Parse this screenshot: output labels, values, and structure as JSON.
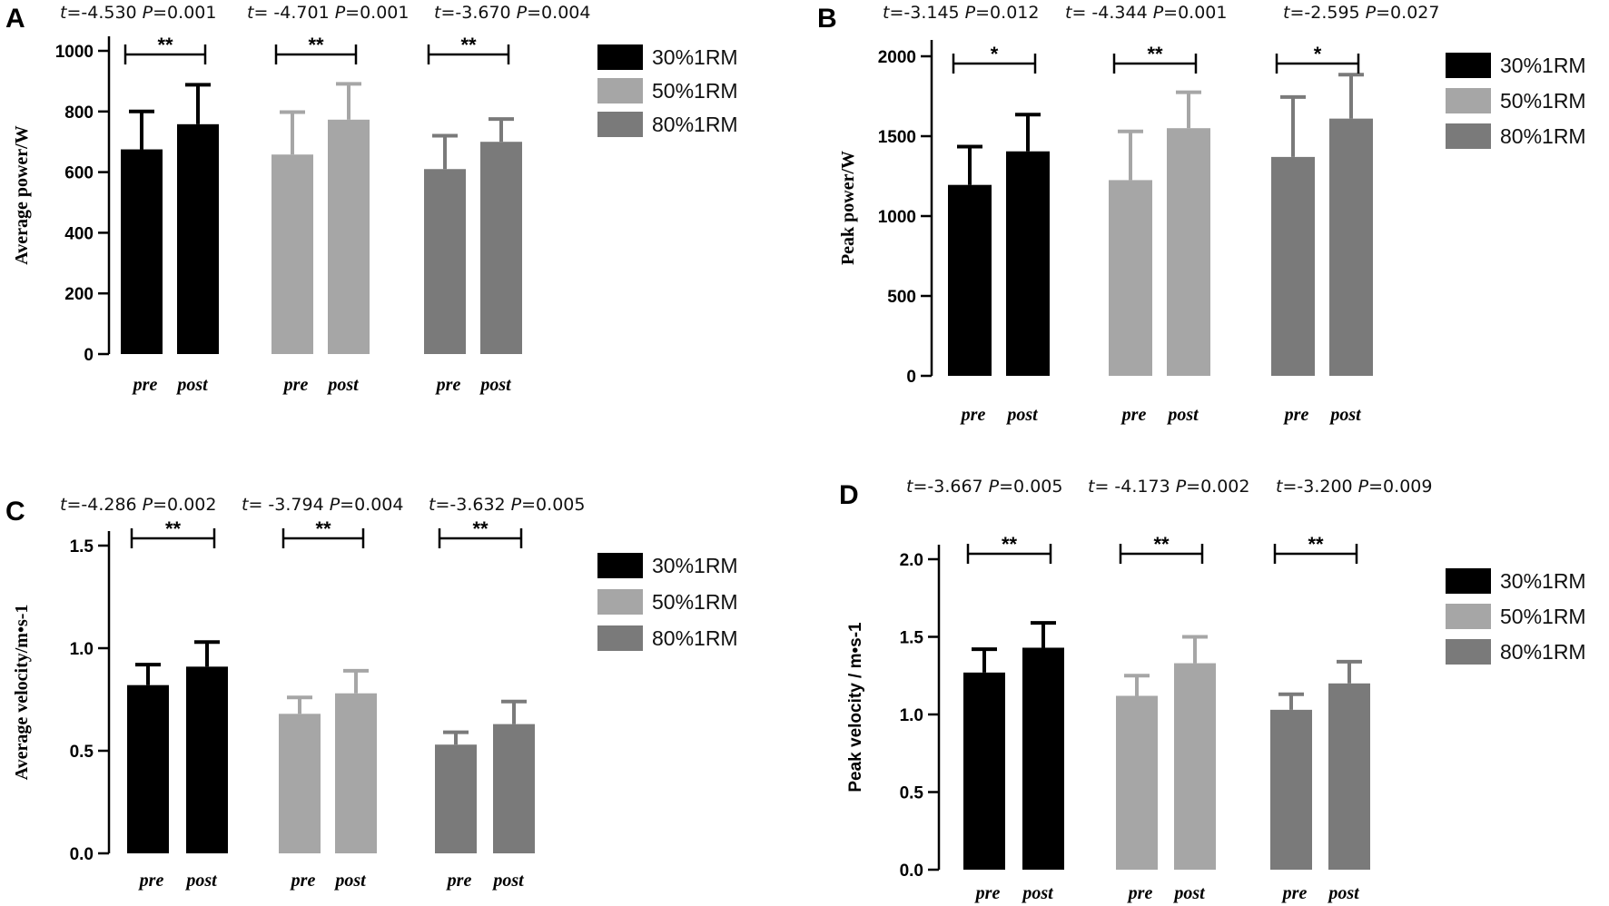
{
  "legend": [
    "30%1RM",
    "50%1RM",
    "80%1RM"
  ],
  "colors": {
    "30%1RM": "#000000",
    "50%1RM": "#a6a6a6",
    "80%1RM": "#7a7a7a"
  },
  "chart_data": [
    {
      "panel": "A",
      "type": "bar",
      "ylabel": "Average power/W",
      "ylim": [
        0,
        1000
      ],
      "yticks": [
        "0",
        "200",
        "400",
        "600",
        "800",
        "1000"
      ],
      "categories": [
        "pre",
        "post"
      ],
      "series": [
        {
          "name": "30%1RM",
          "values": [
            675,
            758
          ],
          "errors": [
            125,
            130
          ]
        },
        {
          "name": "50%1RM",
          "values": [
            658,
            773
          ],
          "errors": [
            140,
            118
          ]
        },
        {
          "name": "80%1RM",
          "values": [
            610,
            700
          ],
          "errors": [
            110,
            75
          ]
        }
      ],
      "stats": [
        {
          "t_label": "t",
          "t_value": "=-4.530",
          "p_label": "P",
          "p_value": "=0.001",
          "sig": "**"
        },
        {
          "t_label": "t",
          "t_value": "= -4.701",
          "p_label": "P",
          "p_value": "=0.001",
          "sig": "**"
        },
        {
          "t_label": "t",
          "t_value": "=-3.670",
          "p_label": "P",
          "p_value": "=0.004",
          "sig": "**"
        }
      ]
    },
    {
      "panel": "B",
      "type": "bar",
      "ylabel": "Peak power/W",
      "ylim": [
        0,
        2000
      ],
      "yticks": [
        "0",
        "500",
        "1000",
        "1500",
        "2000"
      ],
      "categories": [
        "pre",
        "post"
      ],
      "series": [
        {
          "name": "30%1RM",
          "values": [
            1195,
            1405
          ],
          "errors": [
            240,
            230
          ]
        },
        {
          "name": "50%1RM",
          "values": [
            1225,
            1550
          ],
          "errors": [
            305,
            225
          ]
        },
        {
          "name": "80%1RM",
          "values": [
            1370,
            1610
          ],
          "errors": [
            375,
            275
          ]
        }
      ],
      "stats": [
        {
          "t_label": "t",
          "t_value": "=-3.145",
          "p_label": "P",
          "p_value": "=0.012",
          "sig": "*"
        },
        {
          "t_label": "t",
          "t_value": "= -4.344",
          "p_label": "P",
          "p_value": "=0.001",
          "sig": "**"
        },
        {
          "t_label": "t",
          "t_value": "=-2.595",
          "p_label": "P",
          "p_value": "=0.027",
          "sig": "*"
        }
      ]
    },
    {
      "panel": "C",
      "type": "bar",
      "ylabel": "Average velocity/m•s-1",
      "ylim": [
        0,
        1.5
      ],
      "yticks": [
        "0.0",
        "0.5",
        "1.0",
        "1.5"
      ],
      "categories": [
        "pre",
        "post"
      ],
      "series": [
        {
          "name": "30%1RM",
          "values": [
            0.82,
            0.91
          ],
          "errors": [
            0.1,
            0.12
          ]
        },
        {
          "name": "50%1RM",
          "values": [
            0.68,
            0.78
          ],
          "errors": [
            0.08,
            0.11
          ]
        },
        {
          "name": "80%1RM",
          "values": [
            0.53,
            0.63
          ],
          "errors": [
            0.06,
            0.11
          ]
        }
      ],
      "stats": [
        {
          "t_label": "t",
          "t_value": "=-4.286",
          "p_label": "P",
          "p_value": "=0.002",
          "sig": "**"
        },
        {
          "t_label": "t",
          "t_value": "= -3.794",
          "p_label": "P",
          "p_value": "=0.004",
          "sig": "**"
        },
        {
          "t_label": "t",
          "t_value": "=-3.632",
          "p_label": "P",
          "p_value": "=0.005",
          "sig": "**"
        }
      ]
    },
    {
      "panel": "D",
      "type": "bar",
      "ylabel": "Peak velocity / m•s-1",
      "ylim": [
        0,
        2.0
      ],
      "yticks": [
        "0.0",
        "0.5",
        "1.0",
        "1.5",
        "2.0"
      ],
      "categories": [
        "pre",
        "post"
      ],
      "series": [
        {
          "name": "30%1RM",
          "values": [
            1.27,
            1.43
          ],
          "errors": [
            0.15,
            0.16
          ]
        },
        {
          "name": "50%1RM",
          "values": [
            1.12,
            1.33
          ],
          "errors": [
            0.13,
            0.17
          ]
        },
        {
          "name": "80%1RM",
          "values": [
            1.03,
            1.2
          ],
          "errors": [
            0.1,
            0.14
          ]
        }
      ],
      "stats": [
        {
          "t_label": "t",
          "t_value": "=-3.667",
          "p_label": "P",
          "p_value": "=0.005",
          "sig": "**"
        },
        {
          "t_label": "t",
          "t_value": "= -4.173",
          "p_label": "P",
          "p_value": "=0.002",
          "sig": "**"
        },
        {
          "t_label": "t",
          "t_value": "=-3.200",
          "p_label": "P",
          "p_value": "=0.009",
          "sig": "**"
        }
      ]
    }
  ]
}
